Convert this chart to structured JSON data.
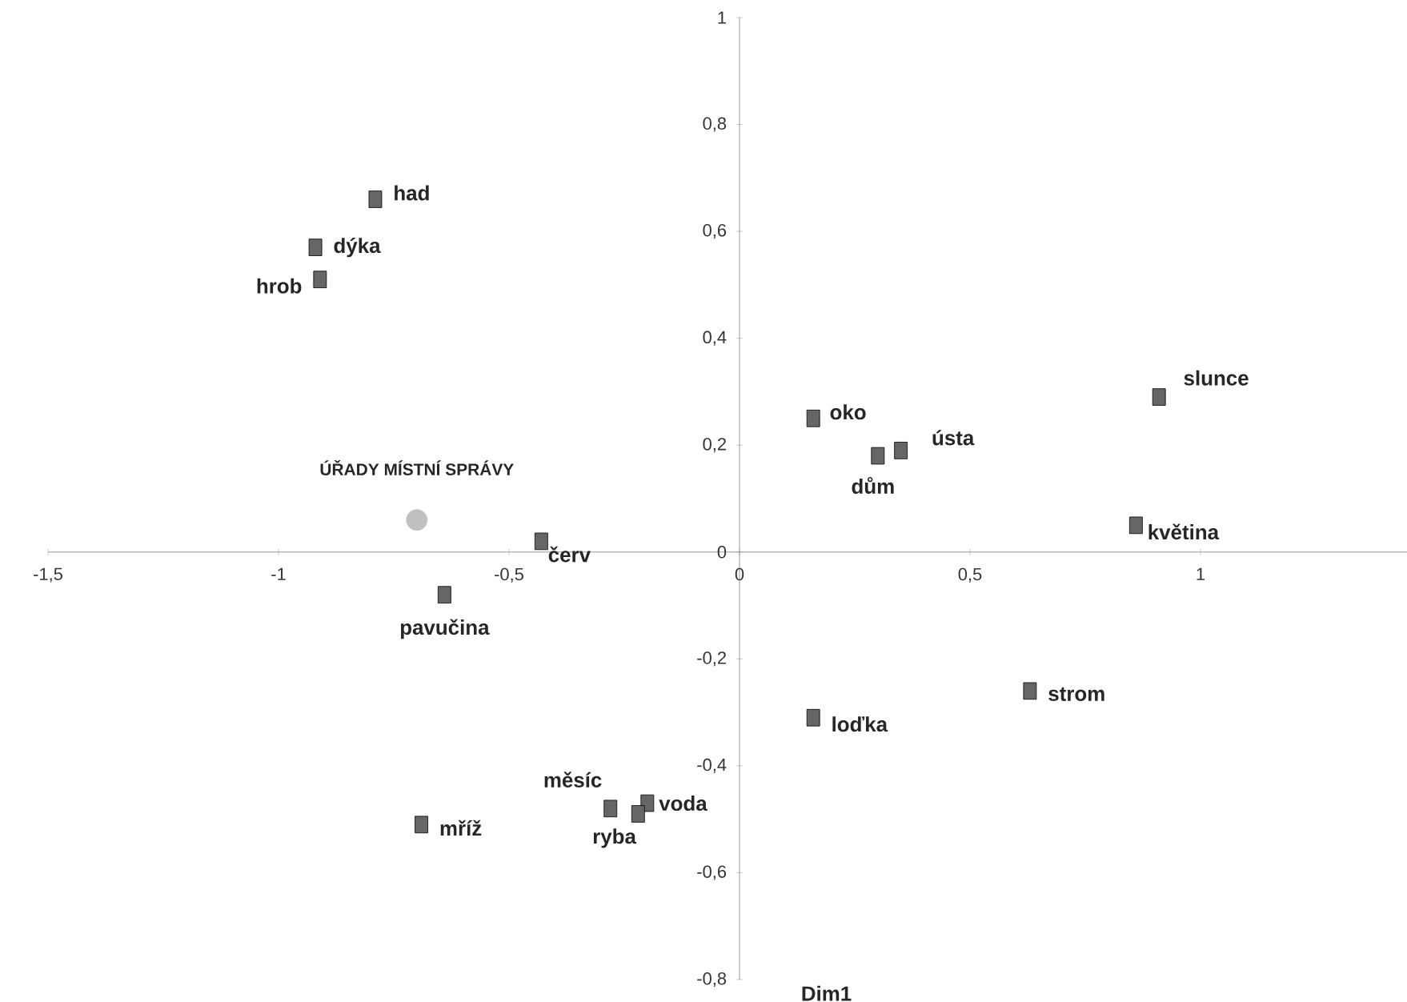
{
  "chart_data": {
    "type": "scatter",
    "xlabel": "Dim1",
    "xlim": [
      -1.5,
      1.5
    ],
    "ylim": [
      -0.8,
      1
    ],
    "xticks": [
      {
        "value": -1.5,
        "label": "-1,5"
      },
      -1,
      {
        "value": -0.5,
        "label": "-0,5"
      },
      0,
      {
        "value": 0.5,
        "label": "0,5"
      },
      1
    ],
    "yticks": [
      {
        "value": -0.8,
        "label": "-0,8"
      },
      {
        "value": -0.6,
        "label": "-0,6"
      },
      {
        "value": -0.4,
        "label": "-0,4"
      },
      {
        "value": -0.2,
        "label": "-0,2"
      },
      0,
      {
        "value": 0.2,
        "label": "0,2"
      },
      {
        "value": 0.4,
        "label": "0,4"
      },
      {
        "value": 0.6,
        "label": "0,6"
      },
      {
        "value": 0.8,
        "label": "0,8"
      },
      1
    ],
    "grid": false,
    "legend": false,
    "series": [
      {
        "color": "#666666",
        "marker": "square",
        "x": [
          -0.79,
          -0.92,
          -0.91,
          -0.43,
          -0.64,
          0.16,
          0.3,
          0.35,
          0.91,
          0.86,
          0.63,
          0.16,
          -0.2,
          -0.22,
          -0.28,
          -0.69
        ],
        "values": [
          0.66,
          0.57,
          0.51,
          0.02,
          -0.08,
          0.25,
          0.18,
          0.19,
          0.29,
          0.05,
          -0.26,
          -0.31,
          -0.47,
          -0.49,
          -0.48,
          -0.51
        ]
      },
      {
        "name": "ÚŘADY MÍSTNÍ SPRÁVY",
        "color": "#c0c0c0",
        "marker": "circle",
        "x": [
          -0.7
        ],
        "values": [
          0.06
        ]
      }
    ],
    "annotations": [
      {
        "text": "had",
        "x": -0.79,
        "y": 0.66
      },
      {
        "text": "dýka",
        "x": -0.92,
        "y": 0.57
      },
      {
        "text": "hrob",
        "x": -0.91,
        "y": 0.51
      },
      {
        "text": "červ",
        "x": -0.43,
        "y": 0.02
      },
      {
        "text": "pavučina",
        "x": -0.64,
        "y": -0.08
      },
      {
        "text": "oko",
        "x": 0.16,
        "y": 0.25
      },
      {
        "text": "dům",
        "x": 0.3,
        "y": 0.18
      },
      {
        "text": "ústa",
        "x": 0.35,
        "y": 0.19
      },
      {
        "text": "slunce",
        "x": 0.91,
        "y": 0.29
      },
      {
        "text": "květina",
        "x": 0.86,
        "y": 0.05
      },
      {
        "text": "strom",
        "x": 0.63,
        "y": -0.26
      },
      {
        "text": "loďka",
        "x": 0.16,
        "y": -0.31
      },
      {
        "text": "voda",
        "x": -0.2,
        "y": -0.47
      },
      {
        "text": "ryba",
        "x": -0.22,
        "y": -0.49
      },
      {
        "text": "měsíc",
        "x": -0.28,
        "y": -0.48
      },
      {
        "text": "mříž",
        "x": -0.69,
        "y": -0.51
      }
    ]
  }
}
